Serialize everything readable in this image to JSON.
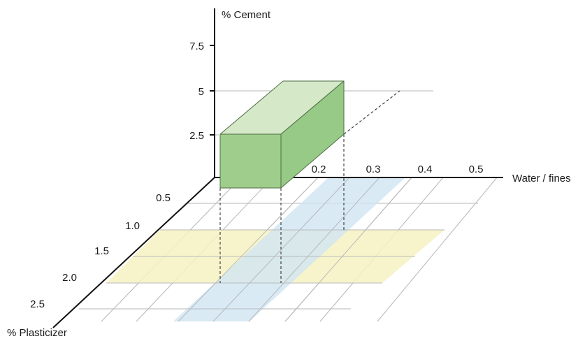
{
  "axes": {
    "vertical": {
      "label": "% Cement",
      "ticks": [
        "2.5",
        "5",
        "7.5"
      ]
    },
    "horizontal": {
      "label": "Water / fines",
      "ticks": [
        "0.2",
        "0.3",
        "0.4",
        "0.5"
      ]
    },
    "depth": {
      "label": "% Plasticizer",
      "ticks": [
        "0.5",
        "1.0",
        "1.5",
        "2.0",
        "2.5"
      ]
    }
  },
  "colors": {
    "box_front": "#9fcd8c",
    "box_top": "#d5e8c8",
    "box_side": "#97c987",
    "box_edge": "#4d6e42",
    "band_plasticizer": "#f6f2c3",
    "band_water": "#cfe5f3",
    "grid": "#b7b7b7",
    "axis": "#111111"
  }
}
